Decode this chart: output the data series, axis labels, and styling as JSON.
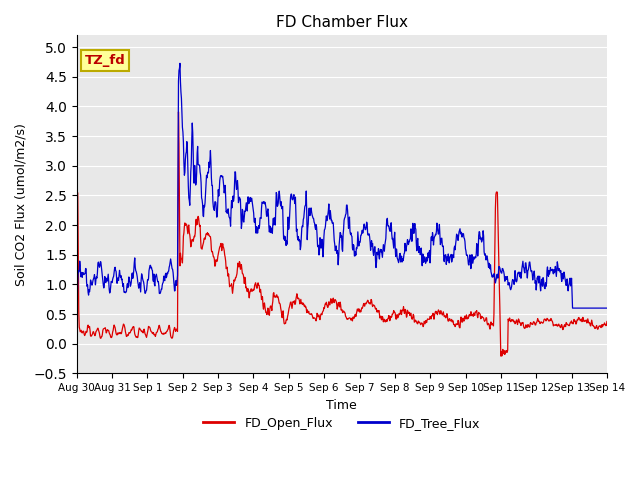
{
  "title": "FD Chamber Flux",
  "xlabel": "Time",
  "ylabel": "Soil CO2 Flux (umol/m2/s)",
  "ylim": [
    -0.5,
    5.2
  ],
  "yticks": [
    -0.5,
    0.0,
    0.5,
    1.0,
    1.5,
    2.0,
    2.5,
    3.0,
    3.5,
    4.0,
    4.5,
    5.0
  ],
  "xtick_labels": [
    "Aug 30",
    "Aug 31",
    "Sep 1",
    "Sep 2",
    "Sep 3",
    "Sep 4",
    "Sep 5",
    "Sep 6",
    "Sep 7",
    "Sep 8",
    "Sep 9",
    "Sep 10",
    "Sep 11",
    "Sep 12",
    "Sep 13",
    "Sep 14"
  ],
  "legend_labels": [
    "FD_Open_Flux",
    "FD_Tree_Flux"
  ],
  "open_color": "#dd0000",
  "tree_color": "#0000cc",
  "plot_bg": "#e8e8e8",
  "grid_color": "#ffffff",
  "annotation_text": "TZ_fd",
  "annotation_bg": "#ffff99",
  "annotation_border": "#bbaa00",
  "annotation_text_color": "#bb0000",
  "title_fontsize": 11,
  "axis_fontsize": 9,
  "tick_fontsize": 8
}
